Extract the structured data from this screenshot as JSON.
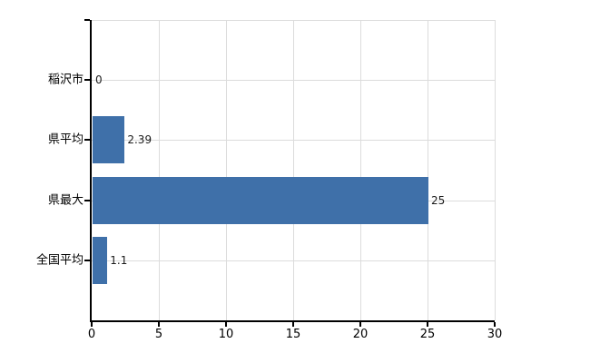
{
  "chart_data": {
    "type": "bar",
    "orientation": "horizontal",
    "title": "",
    "xlabel": "",
    "ylabel": "",
    "categories": [
      "稲沢市",
      "県平均",
      "県最大",
      "全国平均"
    ],
    "values": [
      0,
      2.39,
      25,
      1.1
    ],
    "value_labels": [
      "0",
      "2.39",
      "25",
      "1.1"
    ],
    "xlim": [
      0,
      30
    ],
    "xticks": [
      0,
      5,
      10,
      15,
      20,
      25,
      30
    ],
    "grid": true,
    "legend": "none",
    "colors": {
      "bar": "#3f70a9",
      "gridline": "#dcdcdc",
      "axis": "#000000",
      "text": "#1a1a1a"
    }
  }
}
